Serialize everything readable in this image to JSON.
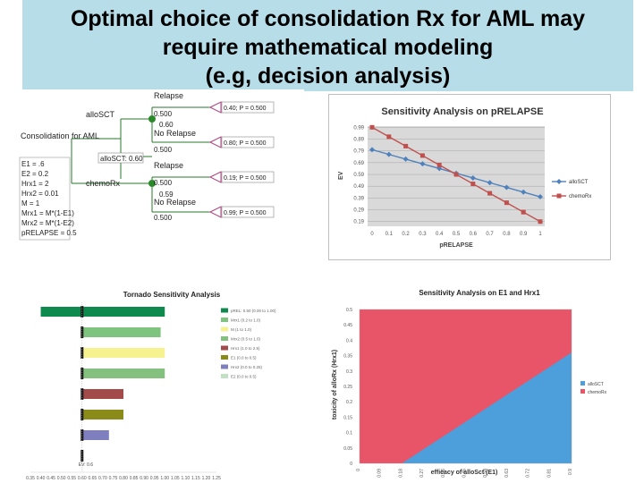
{
  "slide": {
    "title_lines": [
      "Optimal choice of consolidation Rx for AML may",
      "require mathematical modeling",
      "(e.g, decision analysis)"
    ]
  },
  "tree": {
    "root_label": "Consolidation for AML",
    "params": [
      "E1 = .6",
      "E2 = 0.2",
      "Hrx1 = 2",
      "Hrx2 = 0.01",
      "M = 1",
      "Mrx1 = M*(1-E1)",
      "Mrx2 = M*(1-E2)",
      "pRELAPSE = 0.5"
    ],
    "branch1": "alloSCT",
    "branch2": "chemoRx",
    "chosen": "alloSCT: 0.60",
    "relapse": "Relapse",
    "no_relapse": "No Relapse",
    "b1_relapse_p": "0.500",
    "b1_value": "0.60",
    "b1_norelapse_p": "0.500",
    "b2_relapse_p": "0.500",
    "b2_value": "0.59",
    "b2_norelapse_p": "0.500",
    "outcomes": [
      "0.40; P = 0.500",
      "0.80; P = 0.500",
      "0.19; P = 0.500",
      "0.99; P = 0.500"
    ]
  },
  "chart_data": [
    {
      "type": "line",
      "title": "Sensitivity Analysis on pRELAPSE",
      "xlabel": "pRELAPSE",
      "ylabel": "EV",
      "x": [
        0,
        0.1,
        0.2,
        0.3,
        0.4,
        0.5,
        0.6,
        0.7,
        0.8,
        0.9,
        1
      ],
      "x_ticks": [
        "0",
        "0.1",
        "0.2",
        "0.3",
        "0.4",
        "0.5",
        "0.6",
        "0.7",
        "0.8",
        "0.9",
        "1"
      ],
      "y_ticks": [
        "0.99",
        "0.89",
        "0.79",
        "0.69",
        "0.59",
        "0.49",
        "0.39",
        "0.29",
        "0.19"
      ],
      "ylim": [
        0.15,
        1.0
      ],
      "series": [
        {
          "name": "alloSCT",
          "color": "#4f81bd",
          "values": [
            0.8,
            0.76,
            0.72,
            0.68,
            0.64,
            0.6,
            0.56,
            0.52,
            0.48,
            0.44,
            0.4
          ]
        },
        {
          "name": "chemoRx",
          "color": "#c0504d",
          "values": [
            0.99,
            0.91,
            0.83,
            0.75,
            0.67,
            0.59,
            0.51,
            0.43,
            0.35,
            0.27,
            0.19
          ]
        }
      ],
      "grid": true,
      "legend": "right"
    },
    {
      "type": "bar",
      "orientation": "horizontal",
      "title": "Tornado Sensitivity Analysis",
      "baseline": 0.6,
      "baseline_label": "EV: 0.6",
      "xlim": [
        0.35,
        1.25
      ],
      "x_ticks": [
        "0.35",
        "0.40",
        "0.45",
        "0.50",
        "0.55",
        "0.60",
        "0.65",
        "0.70",
        "0.75",
        "0.80",
        "0.85",
        "0.90",
        "0.95",
        "1.00",
        "1.05",
        "1.10",
        "1.15",
        "1.20",
        "1.25"
      ],
      "bars": [
        {
          "label": "pREL: 0.50 (0.00 to 1.00)",
          "low": 0.4,
          "high": 1.0,
          "color": "#0f8a4f"
        },
        {
          "label": "Mrx1 (0.2 to 1.0)",
          "low": 0.6,
          "high": 0.98,
          "color": "#7fc47e"
        },
        {
          "label": "M (1 to 1.0)",
          "low": 0.6,
          "high": 1.0,
          "color": "#f6f28f"
        },
        {
          "label": "Mrx2 (0.5 to 1.0)",
          "low": 0.6,
          "high": 1.0,
          "color": "#84c07e"
        },
        {
          "label": "Hrx1 (1.0 to 2.5)",
          "low": 0.6,
          "high": 0.8,
          "color": "#a34a4a"
        },
        {
          "label": "E1 (0.0 to 0.5)",
          "low": 0.6,
          "high": 0.8,
          "color": "#8b8b1a"
        },
        {
          "label": "Hrx2 (0.0 to 0.25)",
          "low": 0.6,
          "high": 0.73,
          "color": "#7f7fbf"
        },
        {
          "label": "E2 (0.0 to 0.5)",
          "low": 0.6,
          "high": 0.6,
          "color": "#c2e0c2"
        }
      ],
      "legend": "right"
    },
    {
      "type": "area",
      "title": "Sensitivity Analysis on E1 and Hrx1",
      "xlabel": "efficacy of alloSct (E1)",
      "ylabel": "toxicity of alloRx (Hrx1)",
      "xlim": [
        0,
        0.9
      ],
      "ylim": [
        0,
        0.5
      ],
      "x_ticks": [
        "0",
        "0.09",
        "0.18",
        "0.27",
        "0.36",
        "0.45",
        "0.54",
        "0.63",
        "0.72",
        "0.81",
        "0.9"
      ],
      "y_ticks": [
        "0",
        "0.05",
        "0.1",
        "0.15",
        "0.2",
        "0.25",
        "0.3",
        "0.35",
        "0.4",
        "0.45",
        "0.5"
      ],
      "regions": [
        {
          "name": "alloSCT",
          "color": "#4d9fdb"
        },
        {
          "name": "chemoRx",
          "color": "#e85468"
        }
      ],
      "boundary": [
        [
          0.18,
          0
        ],
        [
          0.9,
          0.36
        ]
      ],
      "legend": "right"
    }
  ]
}
